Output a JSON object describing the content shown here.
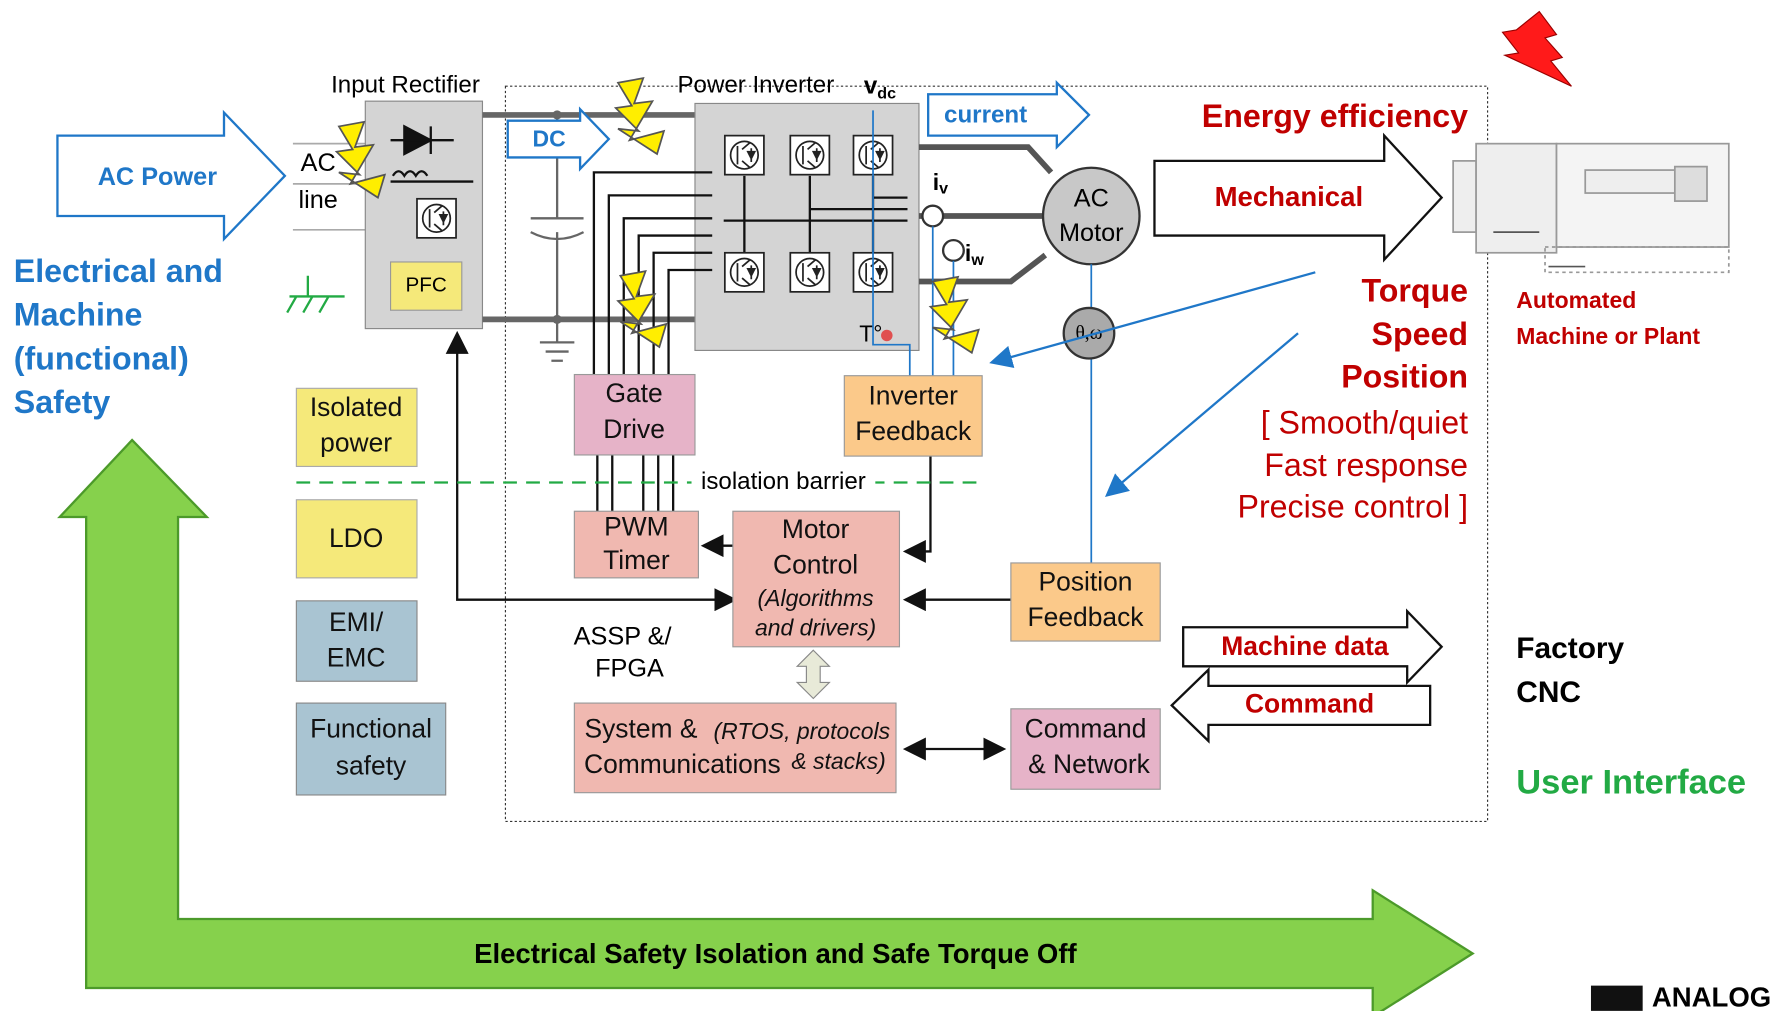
{
  "rectifier": {
    "label": "Input Rectifier",
    "pfc": "PFC",
    "ac_line": [
      "AC",
      "line"
    ]
  },
  "ac_power": "AC Power",
  "dc": "DC",
  "inverter": {
    "label": "Power Inverter",
    "vdc": {
      "text": "v",
      "sub": "dc"
    },
    "temp": "T°"
  },
  "current": "current",
  "sensors": {
    "iv": {
      "text": "i",
      "sub": "v"
    },
    "iw": {
      "text": "i",
      "sub": "w"
    }
  },
  "motor": [
    "AC",
    "Motor"
  ],
  "encoder": "θ,ω",
  "mechanical": "Mechanical",
  "energy_efficiency": "Energy efficiency",
  "control_goals": [
    "Torque",
    "Speed",
    "Position"
  ],
  "qualities": [
    "[ Smooth/quiet",
    "Fast response",
    "Precise control ]"
  ],
  "machine": [
    "Automated",
    "Machine or Plant"
  ],
  "safety": [
    "Electrical and",
    "Machine",
    "(functional)",
    "Safety"
  ],
  "side_blocks": {
    "isolated_power": [
      "Isolated",
      "power"
    ],
    "ldo": "LDO",
    "emi": [
      "EMI/",
      "EMC"
    ],
    "functional_safety": [
      "Functional",
      "safety"
    ]
  },
  "gate_drive": [
    "Gate",
    "Drive"
  ],
  "inverter_feedback": [
    "Inverter",
    "Feedback"
  ],
  "isolation_barrier": "isolation barrier",
  "pwm_timer": [
    "PWM",
    "Timer"
  ],
  "motor_control": {
    "title": [
      "Motor",
      "Control"
    ],
    "note": [
      "(Algorithms",
      "and drivers)"
    ]
  },
  "position_feedback": [
    "Position",
    "Feedback"
  ],
  "assp": [
    "ASSP &/",
    "FPGA"
  ],
  "system": {
    "title": [
      "System &",
      "Communications"
    ],
    "note": [
      "(RTOS, protocols",
      "& stacks)"
    ]
  },
  "command_network": [
    "Command",
    "& Network"
  ],
  "machine_data": "Machine data",
  "command": "Command",
  "factory": [
    "Factory",
    "CNC"
  ],
  "user_interface": "User Interface",
  "safety_arrow": "Electrical Safety Isolation and Safe Torque Off",
  "logo": "ANALOG"
}
